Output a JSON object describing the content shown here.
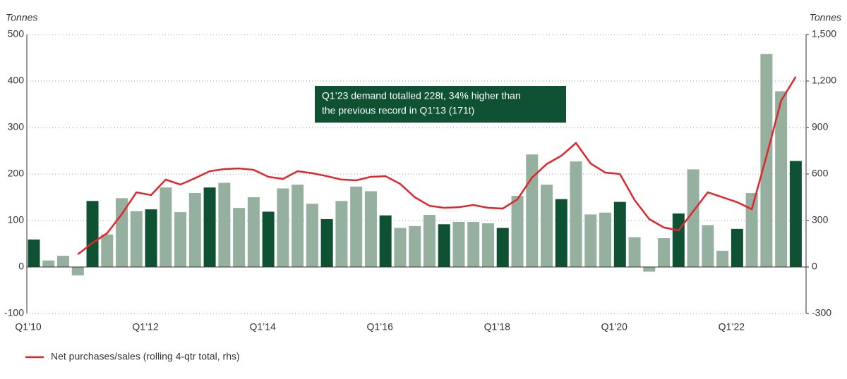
{
  "chart_data": {
    "type": "bar_line",
    "y_label": "Tonnes",
    "y2_label": "Tonnes",
    "annotation": [
      "Q1’23 demand totalled 228t, 34% higher than",
      "the previous record in Q1’13 (171t)"
    ],
    "categories": [
      "Q1’10",
      null,
      null,
      null,
      null,
      null,
      null,
      null,
      "Q1’12",
      null,
      null,
      null,
      null,
      null,
      null,
      null,
      "Q1’14",
      null,
      null,
      null,
      null,
      null,
      null,
      null,
      "Q1’16",
      null,
      null,
      null,
      null,
      null,
      null,
      null,
      "Q1’18",
      null,
      null,
      null,
      null,
      null,
      null,
      null,
      "Q1’20",
      null,
      null,
      null,
      null,
      null,
      null,
      null,
      "Q1’22",
      null,
      null,
      null,
      null
    ],
    "series": [
      {
        "type": "bar",
        "colors": [
          "#0e5233",
          "#95b09f",
          "#95b09f",
          "#95b09f",
          "#0e5233",
          "#95b09f",
          "#95b09f",
          "#95b09f",
          "#0e5233",
          "#95b09f",
          "#95b09f",
          "#95b09f",
          "#0e5233",
          "#95b09f",
          "#95b09f",
          "#95b09f",
          "#0e5233",
          "#95b09f",
          "#95b09f",
          "#95b09f",
          "#0e5233",
          "#95b09f",
          "#95b09f",
          "#95b09f",
          "#0e5233",
          "#95b09f",
          "#95b09f",
          "#95b09f",
          "#0e5233",
          "#95b09f",
          "#95b09f",
          "#95b09f",
          "#0e5233",
          "#95b09f",
          "#95b09f",
          "#95b09f",
          "#0e5233",
          "#95b09f",
          "#95b09f",
          "#95b09f",
          "#0e5233",
          "#95b09f",
          "#95b09f",
          "#95b09f",
          "#0e5233",
          "#95b09f",
          "#95b09f",
          "#95b09f",
          "#0e5233",
          "#95b09f",
          "#95b09f",
          "#95b09f",
          "#0e5233"
        ],
        "values": [
          59,
          14,
          24,
          -18,
          142,
          70,
          148,
          120,
          124,
          171,
          118,
          159,
          171,
          181,
          127,
          150,
          119,
          169,
          177,
          136,
          103,
          142,
          173,
          163,
          111,
          84,
          88,
          112,
          92,
          97,
          97,
          94,
          84,
          153,
          242,
          177,
          146,
          227,
          113,
          117,
          140,
          64,
          -10,
          62,
          115,
          210,
          90,
          35,
          82,
          159,
          458,
          378,
          228
        ]
      },
      {
        "type": "line",
        "name": "Net purchases/sales (rolling 4-qtr total, rhs)",
        "color": "#e0262d",
        "axis": "y2",
        "values": [
          null,
          null,
          null,
          82,
          155,
          218,
          341,
          482,
          464,
          564,
          532,
          573,
          618,
          632,
          636,
          627,
          582,
          568,
          618,
          605,
          586,
          564,
          559,
          582,
          586,
          536,
          450,
          395,
          382,
          386,
          400,
          382,
          377,
          436,
          577,
          664,
          718,
          800,
          668,
          609,
          600,
          432,
          309,
          255,
          236,
          359,
          482,
          450,
          418,
          373,
          714,
          1073,
          1227
        ]
      }
    ],
    "ylim": [
      -100,
      500
    ],
    "yticks": [
      -100,
      0,
      100,
      200,
      300,
      400,
      500
    ],
    "y2lim": [
      -300,
      1500
    ],
    "y2ticks": [
      -300,
      0,
      300,
      600,
      900,
      {
        "value": 1200,
        "label": "1,200"
      },
      {
        "value": 1500,
        "label": "1,500"
      }
    ],
    "grid": true,
    "legend": "bottom-left"
  }
}
